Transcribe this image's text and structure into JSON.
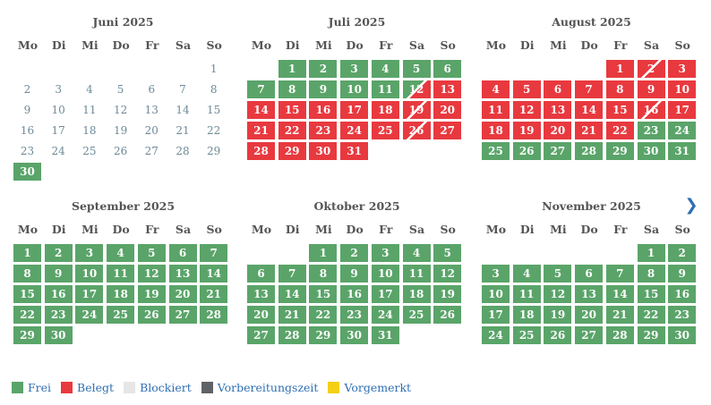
{
  "weekdays": [
    "Mo",
    "Di",
    "Mi",
    "Do",
    "Fr",
    "Sa",
    "So"
  ],
  "nav": {
    "next_icon": "❯"
  },
  "months": [
    {
      "title": "Juni 2025",
      "offset": 6,
      "days": 30,
      "free": [
        30
      ],
      "busy": [],
      "split": {}
    },
    {
      "title": "Juli 2025",
      "offset": 1,
      "days": 31,
      "free": [
        1,
        2,
        3,
        4,
        5,
        6,
        7,
        8,
        9,
        10,
        11
      ],
      "busy": [
        13,
        14,
        15,
        16,
        17,
        18,
        20,
        21,
        22,
        23,
        24,
        25,
        27,
        28,
        29,
        30,
        31
      ],
      "split": {
        "12": "fb",
        "19": "bb",
        "26": "bb"
      }
    },
    {
      "title": "August 2025",
      "offset": 4,
      "days": 31,
      "free": [
        23,
        24,
        25,
        26,
        27,
        28,
        29,
        30,
        31
      ],
      "busy": [
        1,
        3,
        4,
        5,
        6,
        7,
        8,
        9,
        10,
        11,
        12,
        13,
        14,
        15,
        17,
        18,
        19,
        20,
        21,
        22
      ],
      "split": {
        "2": "bb",
        "16": "bb"
      }
    },
    {
      "title": "September 2025",
      "offset": 0,
      "days": 30,
      "free": [
        1,
        2,
        3,
        4,
        5,
        6,
        7,
        8,
        9,
        10,
        11,
        12,
        13,
        14,
        15,
        16,
        17,
        18,
        19,
        20,
        21,
        22,
        23,
        24,
        25,
        26,
        27,
        28,
        29,
        30
      ],
      "busy": [],
      "split": {}
    },
    {
      "title": "Oktober 2025",
      "offset": 2,
      "days": 31,
      "free": [
        1,
        2,
        3,
        4,
        5,
        6,
        7,
        8,
        9,
        10,
        11,
        12,
        13,
        14,
        15,
        16,
        17,
        18,
        19,
        20,
        21,
        22,
        23,
        24,
        25,
        26,
        27,
        28,
        29,
        30,
        31
      ],
      "busy": [],
      "split": {}
    },
    {
      "title": "November 2025",
      "offset": 5,
      "days": 30,
      "free": [
        1,
        2,
        3,
        4,
        5,
        6,
        7,
        8,
        9,
        10,
        11,
        12,
        13,
        14,
        15,
        16,
        17,
        18,
        19,
        20,
        21,
        22,
        23,
        24,
        25,
        26,
        27,
        28,
        29,
        30
      ],
      "busy": [],
      "split": {}
    }
  ],
  "legend": [
    {
      "label": "Frei",
      "color": "#5aa469"
    },
    {
      "label": "Belegt",
      "color": "#e8393f"
    },
    {
      "label": "Blockiert",
      "color": "#e6e6e6"
    },
    {
      "label": "Vorbereitungszeit",
      "color": "#5f6368"
    },
    {
      "label": "Vorgemerkt",
      "color": "#f5cf16"
    }
  ]
}
